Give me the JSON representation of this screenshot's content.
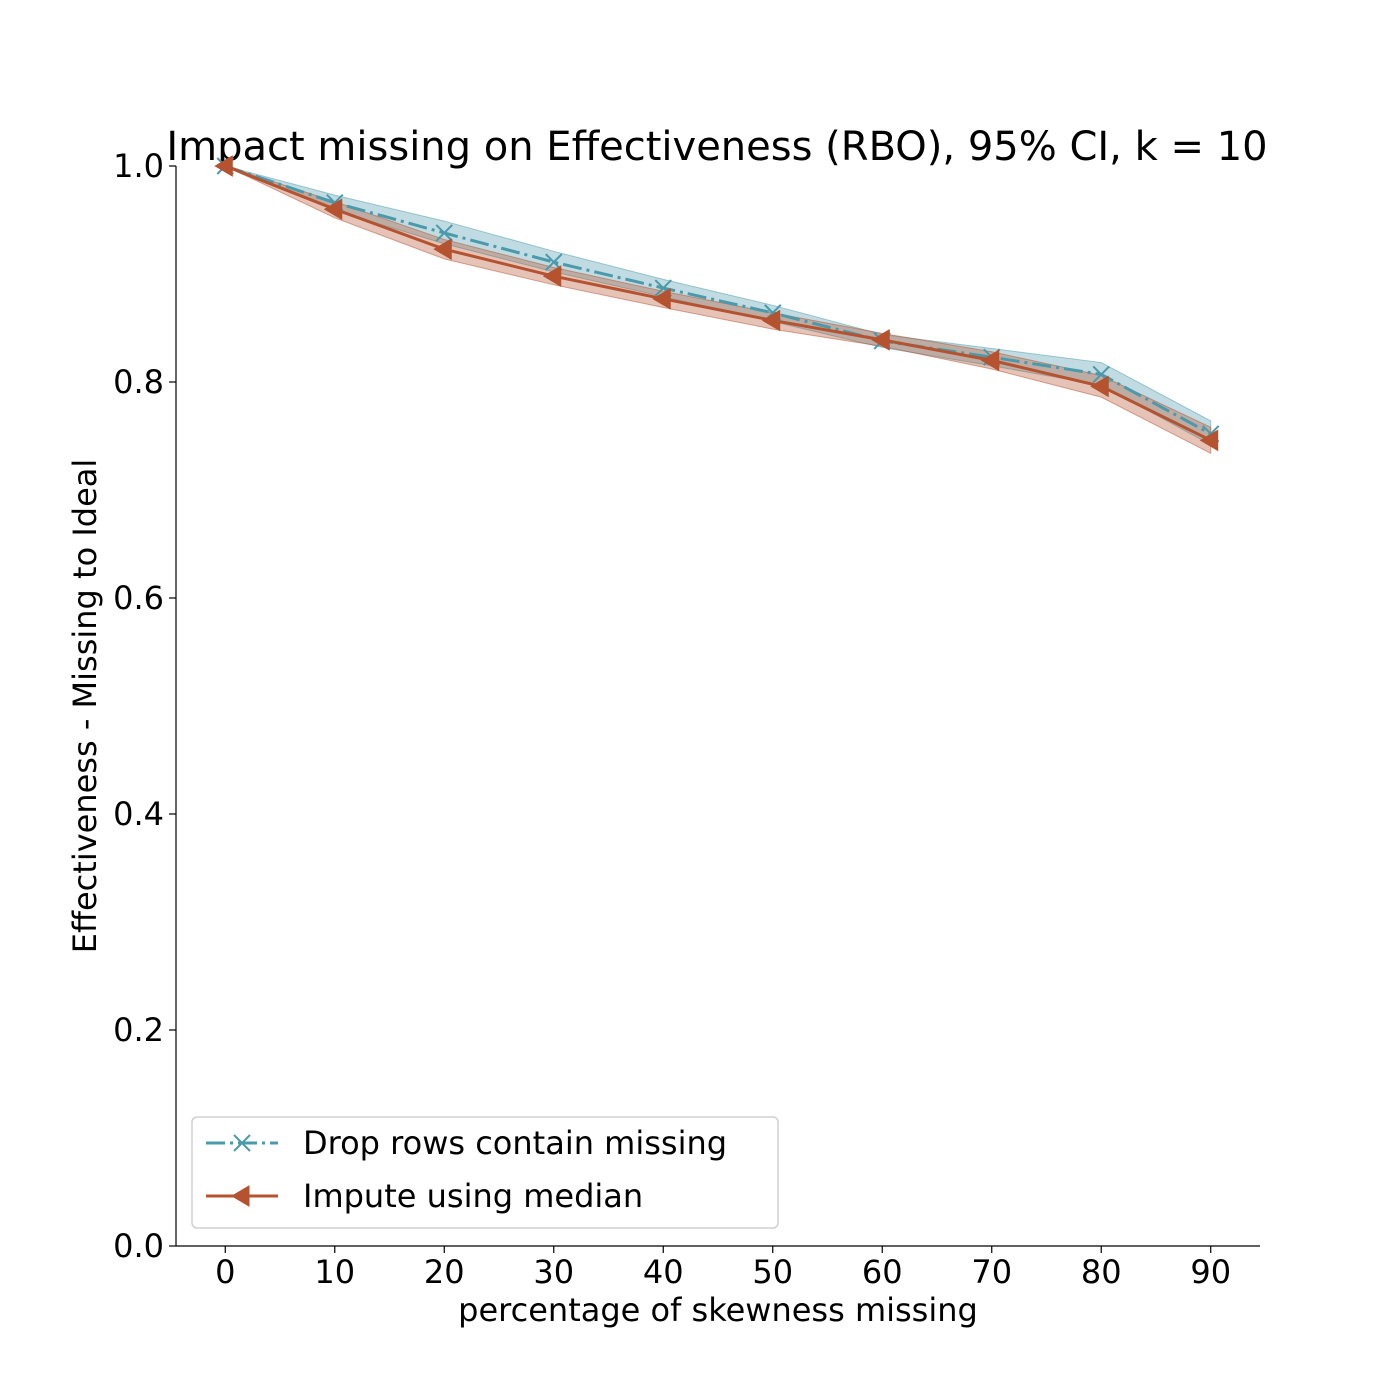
{
  "chart_data": {
    "type": "line",
    "title": "Impact missing on Effectiveness (RBO), 95% CI, k = 10",
    "xlabel": "percentage of skewness missing",
    "ylabel": "Effectiveness - Missing to Ideal",
    "xlim": [
      -4.5,
      94.5
    ],
    "ylim": [
      0.0,
      1.0
    ],
    "x_ticks": [
      "0",
      "10",
      "20",
      "30",
      "40",
      "50",
      "60",
      "70",
      "80",
      "90"
    ],
    "y_ticks": [
      "0.0",
      "0.2",
      "0.4",
      "0.6",
      "0.8",
      "1.0"
    ],
    "x": [
      0,
      10,
      20,
      30,
      40,
      50,
      60,
      70,
      80,
      90
    ],
    "grid": false,
    "legend_position": "lower-left",
    "series": [
      {
        "name": "Drop rows contain missing",
        "values": [
          1.0,
          0.966,
          0.938,
          0.911,
          0.887,
          0.864,
          0.838,
          0.823,
          0.807,
          0.752
        ],
        "ci_low": [
          1.0,
          0.959,
          0.928,
          0.902,
          0.879,
          0.856,
          0.832,
          0.815,
          0.797,
          0.742
        ],
        "ci_high": [
          1.0,
          0.973,
          0.949,
          0.921,
          0.895,
          0.871,
          0.844,
          0.831,
          0.818,
          0.764
        ],
        "color": "#4a9aab",
        "line_style": "dash-dot",
        "marker": "x"
      },
      {
        "name": "Impute using median",
        "values": [
          1.0,
          0.96,
          0.923,
          0.898,
          0.877,
          0.857,
          0.839,
          0.82,
          0.796,
          0.746
        ],
        "ci_low": [
          1.0,
          0.952,
          0.914,
          0.89,
          0.869,
          0.849,
          0.833,
          0.812,
          0.786,
          0.734
        ],
        "ci_high": [
          1.0,
          0.967,
          0.932,
          0.906,
          0.884,
          0.864,
          0.845,
          0.828,
          0.806,
          0.758
        ],
        "color": "#b5522f",
        "line_style": "solid",
        "marker": "triangle-left"
      }
    ]
  }
}
